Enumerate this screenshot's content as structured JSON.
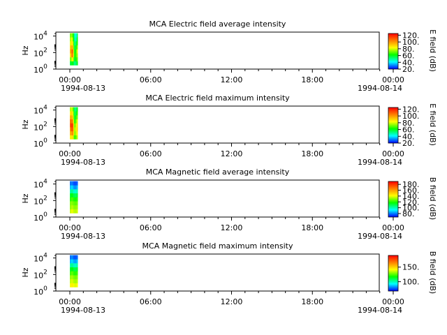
{
  "figure": {
    "tick_times": [
      "00:00",
      "06:00",
      "12:00",
      "18:00",
      "00:00"
    ],
    "date_left": "1994-08-13",
    "date_right": "1994-08-14"
  },
  "chart_data": [
    {
      "type": "heatmap",
      "title": "MCA  Electric field average intensity",
      "ylabel": "Hz",
      "y_scale": "log",
      "ylim": [
        1,
        30000
      ],
      "y_ticks": [
        {
          "base": "10",
          "exp": "0"
        },
        {
          "base": "10",
          "exp": "2"
        },
        {
          "base": "10",
          "exp": "4"
        }
      ],
      "x_range": [
        "1994-08-13 00:00",
        "1994-08-14 00:00"
      ],
      "data_interval": [
        "1994-08-13 00:00",
        "1994-08-13 00:35"
      ],
      "colorbar": {
        "label": "E field (dB)",
        "range": [
          20,
          125
        ],
        "ticks": [
          "20.",
          "40.",
          "60.",
          "80.",
          "100.",
          "120."
        ]
      },
      "columns": [
        [
          55,
          72,
          85,
          95,
          90,
          80,
          75,
          70
        ],
        [
          60,
          75,
          95,
          100,
          95,
          85,
          80,
          75
        ],
        [
          58,
          80,
          105,
          110,
          98,
          88,
          82,
          72
        ],
        [
          62,
          85,
          100,
          105,
          92,
          80,
          70,
          65
        ],
        [
          55,
          70,
          80,
          78,
          70,
          65,
          62,
          60
        ],
        [
          50,
          58,
          62,
          60,
          55,
          50,
          48,
          45
        ],
        [
          52,
          60,
          65,
          62,
          58,
          52,
          45,
          42
        ],
        [
          55,
          65,
          70,
          72,
          65,
          58,
          50,
          45
        ],
        [
          60,
          70,
          75,
          80,
          72,
          65,
          60,
          55
        ]
      ]
    },
    {
      "type": "heatmap",
      "title": "MCA  Electric field maximum intensity",
      "ylabel": "Hz",
      "y_scale": "log",
      "ylim": [
        1,
        30000
      ],
      "y_ticks": [
        {
          "base": "10",
          "exp": "0"
        },
        {
          "base": "10",
          "exp": "2"
        },
        {
          "base": "10",
          "exp": "4"
        }
      ],
      "x_range": [
        "1994-08-13 00:00",
        "1994-08-14 00:00"
      ],
      "data_interval": [
        "1994-08-13 00:00",
        "1994-08-13 00:35"
      ],
      "colorbar": {
        "label": "E field (dB)",
        "range": [
          20,
          125
        ],
        "ticks": [
          "20.",
          "40.",
          "60.",
          "80.",
          "100.",
          "120."
        ]
      },
      "columns": [
        [
          85,
          95,
          100,
          110,
          105,
          95,
          85,
          75
        ],
        [
          88,
          100,
          110,
          115,
          108,
          98,
          90,
          80
        ],
        [
          85,
          98,
          112,
          118,
          105,
          95,
          88,
          78
        ],
        [
          90,
          105,
          108,
          110,
          100,
          90,
          80,
          72
        ],
        [
          75,
          85,
          90,
          88,
          80,
          72,
          68,
          65
        ],
        [
          65,
          72,
          75,
          70,
          62,
          58,
          55,
          52
        ],
        [
          68,
          75,
          78,
          74,
          68,
          60,
          55,
          50
        ],
        [
          72,
          80,
          85,
          82,
          75,
          68,
          60,
          55
        ],
        [
          78,
          85,
          90,
          88,
          80,
          72,
          66,
          60
        ]
      ]
    },
    {
      "type": "heatmap",
      "title": "MCA  Magnetic field average intensity",
      "ylabel": "Hz",
      "y_scale": "log",
      "ylim": [
        1,
        30000
      ],
      "y_ticks": [
        {
          "base": "10",
          "exp": "0"
        },
        {
          "base": "10",
          "exp": "2"
        },
        {
          "base": "10",
          "exp": "4"
        }
      ],
      "x_range": [
        "1994-08-13 00:00",
        "1994-08-14 00:00"
      ],
      "data_interval": [
        "1994-08-13 00:00",
        "1994-08-13 00:35"
      ],
      "colorbar": {
        "label": "B field (dB)",
        "range": [
          68,
          190
        ],
        "ticks": [
          "80.",
          "100.",
          "120.",
          "140.",
          "160.",
          "180."
        ]
      },
      "columns": [
        [
          135,
          130,
          128,
          120,
          112,
          100,
          85,
          78
        ],
        [
          138,
          132,
          130,
          122,
          115,
          102,
          88,
          80
        ],
        [
          140,
          135,
          130,
          124,
          116,
          104,
          90,
          80
        ],
        [
          138,
          133,
          128,
          122,
          113,
          100,
          86,
          78
        ],
        [
          136,
          131,
          127,
          120,
          110,
          98,
          84,
          76
        ],
        [
          135,
          130,
          126,
          119,
          110,
          97,
          82,
          75
        ],
        [
          134,
          130,
          125,
          118,
          108,
          96,
          82,
          75
        ],
        [
          135,
          131,
          126,
          120,
          110,
          98,
          84,
          76
        ],
        [
          137,
          132,
          128,
          121,
          112,
          100,
          86,
          77
        ]
      ]
    },
    {
      "type": "heatmap",
      "title": "MCA  Magnetic field maximum intensity",
      "ylabel": "Hz",
      "y_scale": "log",
      "ylim": [
        1,
        30000
      ],
      "y_ticks": [
        {
          "base": "10",
          "exp": "0"
        },
        {
          "base": "10",
          "exp": "2"
        },
        {
          "base": "10",
          "exp": "4"
        }
      ],
      "x_range": [
        "1994-08-13 00:00",
        "1994-08-14 00:00"
      ],
      "data_interval": [
        "1994-08-13 00:00",
        "1994-08-13 00:35"
      ],
      "colorbar": {
        "label": "B field (dB)",
        "range": [
          68,
          190
        ],
        "ticks": [
          "100.",
          "150."
        ]
      },
      "columns": [
        [
          140,
          135,
          130,
          122,
          112,
          100,
          85,
          78
        ],
        [
          142,
          137,
          132,
          124,
          114,
          102,
          88,
          80
        ],
        [
          145,
          138,
          133,
          126,
          116,
          104,
          90,
          82
        ],
        [
          142,
          136,
          131,
          124,
          114,
          101,
          87,
          79
        ],
        [
          140,
          134,
          129,
          121,
          111,
          99,
          85,
          77
        ],
        [
          139,
          133,
          128,
          120,
          110,
          98,
          84,
          76
        ],
        [
          138,
          132,
          127,
          120,
          110,
          97,
          83,
          76
        ],
        [
          139,
          133,
          128,
          121,
          111,
          99,
          85,
          77
        ],
        [
          141,
          135,
          130,
          123,
          113,
          101,
          87,
          78
        ]
      ]
    }
  ]
}
